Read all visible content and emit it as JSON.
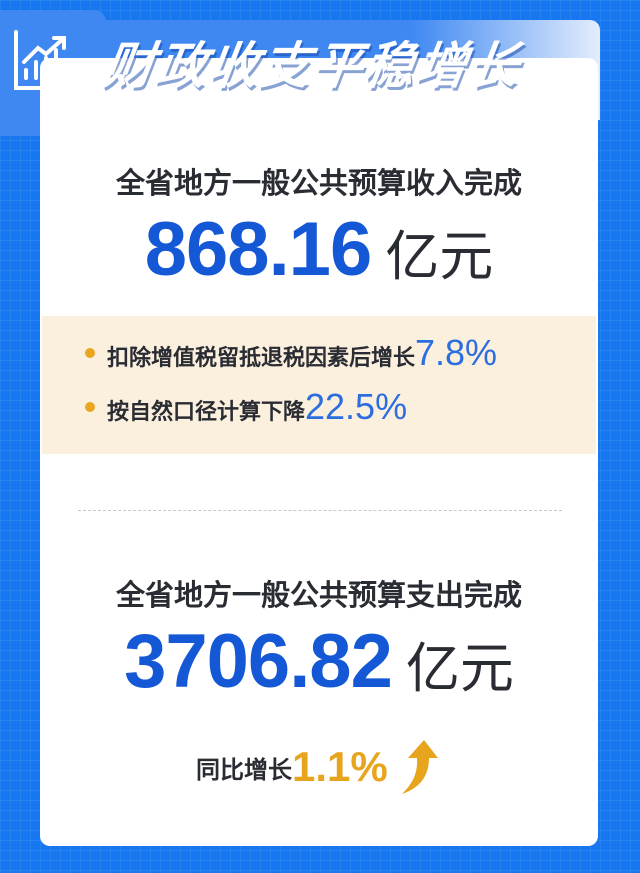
{
  "title": "财政收支平稳增长",
  "icons": {
    "header": "chart-growth-icon",
    "growth": "arrow-up-icon"
  },
  "colors": {
    "background": "#1677f0",
    "accent_blue": "#1458d6",
    "accent_orange": "#e7a51e",
    "beige": "#fbefde"
  },
  "revenue": {
    "heading": "全省地方一般公共预算收入完成",
    "value": "868.16",
    "unit": "亿元",
    "notes": [
      {
        "text": "扣除增值税留抵退税因素后增长",
        "value": "7.8%"
      },
      {
        "text": "按自然口径计算下降",
        "value": "22.5%"
      }
    ]
  },
  "expenditure": {
    "heading": "全省地方一般公共预算支出完成",
    "value": "3706.82",
    "unit": "亿元",
    "growth_label": "同比增长",
    "growth_value": "1.1%"
  }
}
